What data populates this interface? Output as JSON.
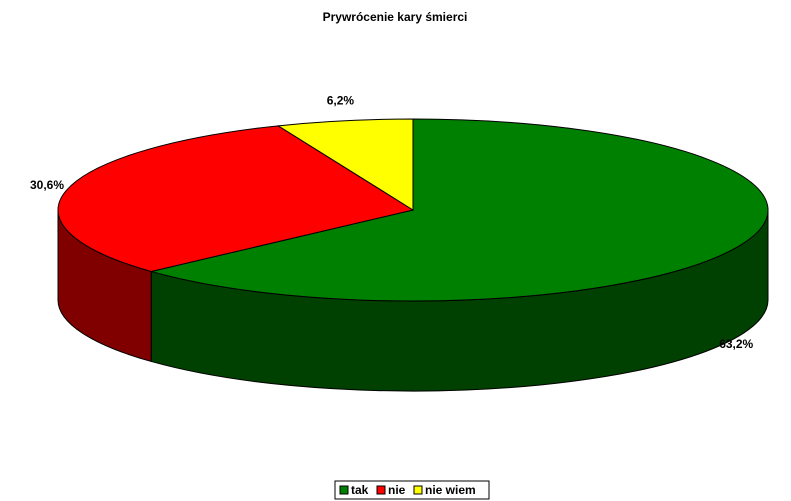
{
  "chart_data": {
    "type": "pie3d",
    "title": "Prywrócenie kary śmierci",
    "categories": [
      "tak",
      "nie",
      "nie wiem"
    ],
    "values": [
      63.2,
      30.6,
      6.2
    ],
    "value_labels": [
      "63,2%",
      "30,6%",
      "6,2%"
    ],
    "colors": [
      "#008000",
      "#ff0000",
      "#ffff00"
    ],
    "legend": "bottom"
  }
}
